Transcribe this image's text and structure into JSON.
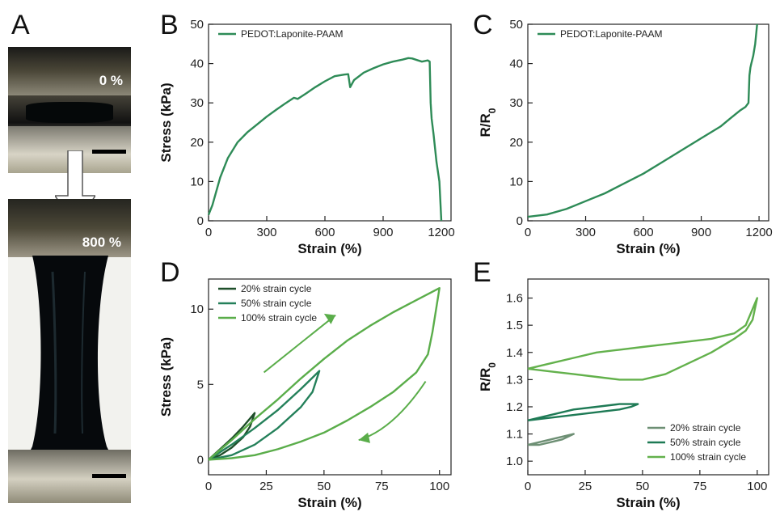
{
  "panels": {
    "a": "A",
    "b": "B",
    "c": "C",
    "d": "D",
    "e": "E"
  },
  "photo": {
    "top_label": "0 %",
    "bottom_label": "800 %"
  },
  "chart_data": [
    {
      "id": "B",
      "type": "line",
      "xlabel": "Strain (%)",
      "ylabel": "Stress (kPa)",
      "xlim": [
        0,
        1250
      ],
      "ylim": [
        0,
        50
      ],
      "xticks": [
        0,
        300,
        600,
        900,
        1200
      ],
      "yticks": [
        0,
        10,
        20,
        30,
        40,
        50
      ],
      "series": [
        {
          "name": "PEDOT:Laponite-PAAM",
          "color": "#2e8b57",
          "x": [
            0,
            20,
            60,
            100,
            150,
            200,
            250,
            300,
            350,
            400,
            440,
            460,
            500,
            550,
            600,
            650,
            700,
            720,
            730,
            750,
            800,
            850,
            900,
            950,
            1000,
            1030,
            1050,
            1080,
            1100,
            1130,
            1140,
            1145,
            1150,
            1160,
            1175,
            1190,
            1200
          ],
          "y": [
            1.5,
            4,
            11,
            16,
            20,
            22.5,
            24.5,
            26.5,
            28.3,
            30,
            31.3,
            31,
            32.3,
            34,
            35.5,
            36.8,
            37.2,
            37.3,
            34,
            35.8,
            37.7,
            38.8,
            39.8,
            40.5,
            41,
            41.4,
            41.3,
            40.8,
            40.5,
            40.8,
            40.5,
            30,
            26,
            22,
            15,
            10,
            0
          ]
        }
      ],
      "legend": "top-left"
    },
    {
      "id": "C",
      "type": "line",
      "xlabel": "Strain (%)",
      "ylabel": "R/R",
      "ylabel_sub": "0",
      "xlim": [
        0,
        1250
      ],
      "ylim": [
        0,
        50
      ],
      "xticks": [
        0,
        300,
        600,
        900,
        1200
      ],
      "yticks": [
        0,
        10,
        20,
        30,
        40,
        50
      ],
      "series": [
        {
          "name": "PEDOT:Laponite-PAAM",
          "color": "#2e8b57",
          "x": [
            0,
            100,
            200,
            300,
            400,
            500,
            600,
            700,
            800,
            900,
            1000,
            1050,
            1100,
            1130,
            1145,
            1150,
            1155,
            1160,
            1170,
            1180,
            1190
          ],
          "y": [
            1,
            1.6,
            3,
            5,
            7,
            9.5,
            12,
            15,
            18,
            21,
            24,
            26,
            28,
            29,
            30,
            37,
            39,
            40,
            42,
            45,
            50
          ]
        }
      ],
      "legend": "top-left"
    },
    {
      "id": "D",
      "type": "line",
      "xlabel": "Strain (%)",
      "ylabel": "Stress (kPa)",
      "xlim": [
        0,
        105
      ],
      "ylim": [
        -1,
        12
      ],
      "xticks": [
        0,
        25,
        50,
        75,
        100
      ],
      "yticks": [
        0,
        5,
        10
      ],
      "series": [
        {
          "name": "20% strain cycle",
          "color": "#1f4f2a",
          "x": [
            0,
            5,
            10,
            15,
            20,
            18,
            15,
            10,
            5,
            0
          ],
          "y": [
            0,
            0.7,
            1.4,
            2.2,
            3.1,
            2.2,
            1.5,
            0.8,
            0.3,
            0
          ]
        },
        {
          "name": "50% strain cycle",
          "color": "#24805a",
          "x": [
            0,
            10,
            20,
            30,
            40,
            48,
            45,
            40,
            30,
            20,
            10,
            0
          ],
          "y": [
            0,
            1,
            2.1,
            3.3,
            4.7,
            5.9,
            4.5,
            3.5,
            2.1,
            1,
            0.3,
            0
          ]
        },
        {
          "name": "100% strain cycle",
          "color": "#5aad4a",
          "x": [
            0,
            10,
            20,
            30,
            40,
            50,
            60,
            70,
            80,
            90,
            100,
            97,
            95,
            90,
            80,
            70,
            60,
            50,
            40,
            30,
            20,
            10,
            0
          ],
          "y": [
            0,
            1.3,
            2.7,
            4,
            5.4,
            6.7,
            7.9,
            8.9,
            9.8,
            10.6,
            11.4,
            8.5,
            7,
            5.8,
            4.5,
            3.5,
            2.6,
            1.8,
            1.2,
            0.7,
            0.3,
            0.1,
            0
          ]
        }
      ],
      "legend": "top-left"
    },
    {
      "id": "E",
      "type": "line",
      "xlabel": "Strain (%)",
      "ylabel": "R/R",
      "ylabel_sub": "0",
      "xlim": [
        0,
        105
      ],
      "ylim": [
        0.95,
        1.67
      ],
      "xticks": [
        0,
        25,
        50,
        75,
        100
      ],
      "yticks": [
        1.0,
        1.1,
        1.2,
        1.3,
        1.4,
        1.5,
        1.6
      ],
      "series": [
        {
          "name": "20% strain cycle",
          "color": "#6d8f74",
          "x": [
            0,
            5,
            10,
            15,
            20,
            15,
            10,
            5,
            0
          ],
          "y": [
            1.06,
            1.07,
            1.08,
            1.09,
            1.1,
            1.08,
            1.07,
            1.06,
            1.06
          ]
        },
        {
          "name": "50% strain cycle",
          "color": "#1e7a55",
          "x": [
            0,
            10,
            20,
            30,
            40,
            48,
            45,
            40,
            30,
            20,
            10,
            0
          ],
          "y": [
            1.15,
            1.17,
            1.19,
            1.2,
            1.21,
            1.21,
            1.2,
            1.19,
            1.18,
            1.17,
            1.16,
            1.15
          ]
        },
        {
          "name": "100% strain cycle",
          "color": "#63b14c",
          "x": [
            0,
            10,
            20,
            30,
            40,
            50,
            60,
            70,
            80,
            90,
            95,
            100,
            98,
            95,
            90,
            80,
            70,
            60,
            50,
            40,
            30,
            20,
            10,
            0
          ],
          "y": [
            1.34,
            1.36,
            1.38,
            1.4,
            1.41,
            1.42,
            1.43,
            1.44,
            1.45,
            1.47,
            1.5,
            1.6,
            1.52,
            1.48,
            1.45,
            1.4,
            1.36,
            1.32,
            1.3,
            1.3,
            1.31,
            1.32,
            1.33,
            1.34
          ]
        }
      ],
      "legend": "bottom-right"
    }
  ]
}
